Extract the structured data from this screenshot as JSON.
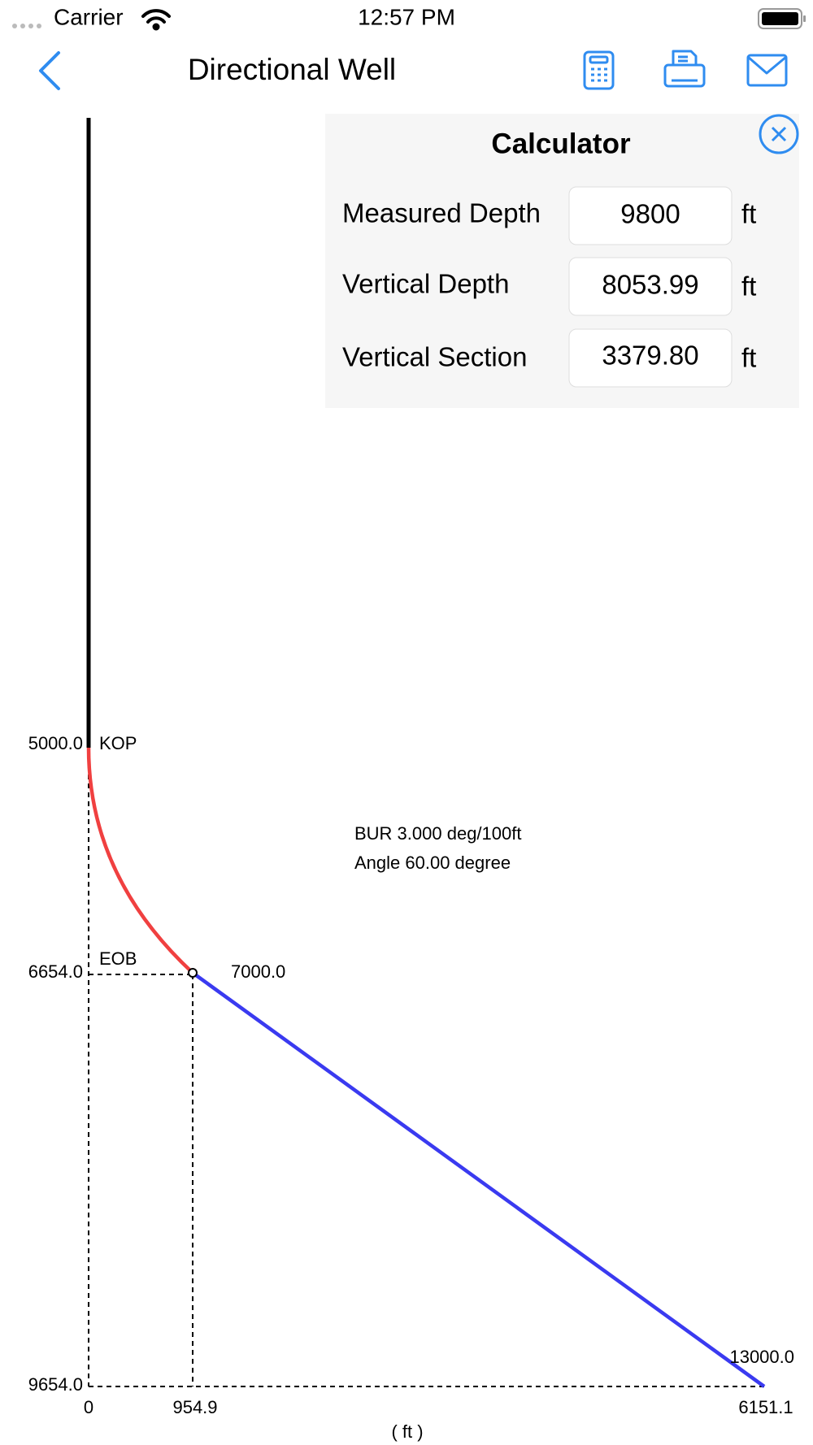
{
  "status_bar": {
    "carrier": "Carrier",
    "time": "12:57 PM"
  },
  "nav": {
    "title": "Directional Well"
  },
  "calculator": {
    "title": "Calculator",
    "rows": [
      {
        "label": "Measured Depth",
        "value": "9800",
        "unit": "ft"
      },
      {
        "label": "Vertical Depth",
        "value": "8053.99",
        "unit": "ft"
      },
      {
        "label": "Vertical Section",
        "value": "3379.80",
        "unit": "ft"
      }
    ]
  },
  "diagram": {
    "kop_depth": "5000.0",
    "kop_label": "KOP",
    "eob_depth": "6654.0",
    "eob_label": "EOB",
    "eob_md": "7000.0",
    "td_depth": "9654.0",
    "td_md": "13000.0",
    "x_origin": "0",
    "eob_displacement": "954.9",
    "td_displacement": "6151.1",
    "x_unit": "( ft )",
    "notes": [
      "BUR 3.000 deg/100ft",
      "Angle 60.00 degree"
    ]
  }
}
